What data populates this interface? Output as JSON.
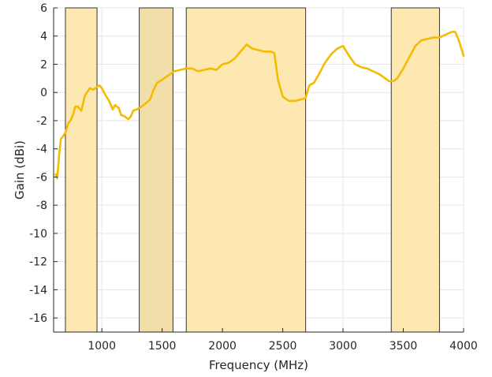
{
  "chart_data": {
    "type": "line",
    "title": "",
    "xlabel": "Frequency (MHz)",
    "ylabel": "Gain (dBi)",
    "xlim": [
      600,
      4000
    ],
    "ylim": [
      -17,
      6
    ],
    "xticks": [
      1000,
      1500,
      2000,
      2500,
      3000,
      3500,
      4000
    ],
    "yticks": [
      6,
      4,
      2,
      0,
      -2,
      -4,
      -6,
      -8,
      -10,
      -12,
      -14,
      -16
    ],
    "grid": true,
    "bands": [
      {
        "start": 698,
        "end": 960,
        "color": "#fde8b2"
      },
      {
        "start": 1310,
        "end": 1590,
        "color": "#f2dea8"
      },
      {
        "start": 1700,
        "end": 2690,
        "color": "#fde8b2"
      },
      {
        "start": 3400,
        "end": 3800,
        "color": "#fde8b2"
      }
    ],
    "series": [
      {
        "color": "#f5bb00",
        "x": [
          617,
          630,
          645,
          660,
          680,
          700,
          720,
          740,
          760,
          780,
          800,
          830,
          860,
          900,
          930,
          960,
          980,
          1000,
          1030,
          1060,
          1090,
          1110,
          1140,
          1160,
          1190,
          1220,
          1240,
          1260,
          1290,
          1310,
          1330,
          1360,
          1400,
          1430,
          1460,
          1500,
          1550,
          1600,
          1650,
          1700,
          1750,
          1800,
          1850,
          1900,
          1950,
          2000,
          2050,
          2100,
          2150,
          2200,
          2250,
          2300,
          2350,
          2400,
          2430,
          2460,
          2500,
          2550,
          2600,
          2650,
          2690,
          2720,
          2760,
          2800,
          2850,
          2900,
          2950,
          3000,
          3050,
          3100,
          3150,
          3200,
          3250,
          3300,
          3350,
          3380,
          3420,
          3450,
          3500,
          3550,
          3600,
          3650,
          3700,
          3750,
          3800,
          3850,
          3900,
          3930,
          3960,
          4000
        ],
        "y": [
          -5.8,
          -6.1,
          -4.5,
          -3.3,
          -3.1,
          -2.8,
          -2.2,
          -2.0,
          -1.6,
          -1.0,
          -1.0,
          -1.3,
          -0.2,
          0.3,
          0.2,
          0.4,
          0.5,
          0.3,
          -0.2,
          -0.6,
          -1.2,
          -0.9,
          -1.1,
          -1.6,
          -1.7,
          -1.9,
          -1.7,
          -1.3,
          -1.2,
          -1.1,
          -1.0,
          -0.8,
          -0.5,
          0.2,
          0.7,
          0.9,
          1.2,
          1.5,
          1.6,
          1.7,
          1.7,
          1.5,
          1.6,
          1.7,
          1.6,
          2.0,
          2.1,
          2.4,
          2.9,
          3.4,
          3.1,
          3.0,
          2.9,
          2.9,
          2.8,
          0.9,
          -0.3,
          -0.6,
          -0.6,
          -0.5,
          -0.4,
          0.5,
          0.7,
          1.3,
          2.1,
          2.7,
          3.1,
          3.3,
          2.6,
          2.0,
          1.8,
          1.7,
          1.5,
          1.3,
          1.0,
          0.8,
          0.8,
          1.0,
          1.7,
          2.5,
          3.3,
          3.7,
          3.8,
          3.9,
          3.9,
          4.1,
          4.3,
          4.3,
          3.7,
          2.6
        ]
      }
    ]
  }
}
